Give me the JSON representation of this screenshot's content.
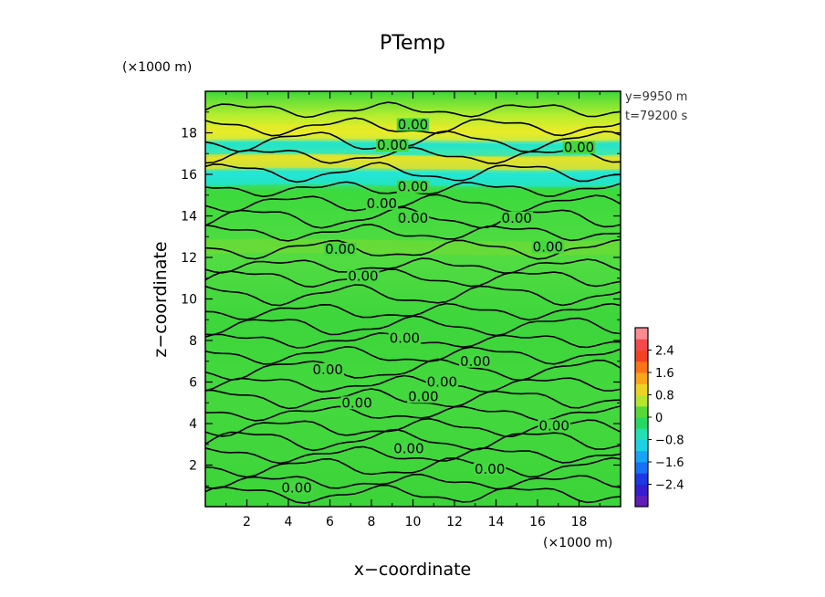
{
  "chart_data": {
    "type": "heatmap",
    "title": "PTemp",
    "xlabel": "x−coordinate",
    "ylabel": "z−coordinate",
    "x_unit": "(×1000 m)",
    "y_unit": "(×1000 m)",
    "xlim": [
      0,
      20
    ],
    "ylim": [
      0,
      20
    ],
    "x_ticks": [
      2,
      4,
      6,
      8,
      10,
      12,
      14,
      16,
      18
    ],
    "y_ticks": [
      2,
      4,
      6,
      8,
      10,
      12,
      14,
      16,
      18
    ],
    "info": [
      "y=9950  m",
      "t=79200 s"
    ],
    "colorbar": {
      "range": [
        -3.2,
        3.2
      ],
      "ticks": [
        {
          "value": 2.4,
          "label": "2.4"
        },
        {
          "value": 1.6,
          "label": "1.6"
        },
        {
          "value": 0.8,
          "label": "0.8"
        },
        {
          "value": 0,
          "label": "0"
        },
        {
          "value": -0.8,
          "label": "−0.8"
        },
        {
          "value": -1.6,
          "label": "−1.6"
        },
        {
          "value": -2.4,
          "label": "−2.4"
        }
      ]
    },
    "contour_level": 0.0,
    "contour_labels": [
      {
        "x": 10.0,
        "z": 18.4,
        "text": "0.00"
      },
      {
        "x": 9.0,
        "z": 17.4,
        "text": "0.00"
      },
      {
        "x": 18.0,
        "z": 17.3,
        "text": "0.00"
      },
      {
        "x": 10.0,
        "z": 15.4,
        "text": "0.00"
      },
      {
        "x": 8.5,
        "z": 14.6,
        "text": "0.00"
      },
      {
        "x": 10.0,
        "z": 13.9,
        "text": "0.00"
      },
      {
        "x": 15.0,
        "z": 13.9,
        "text": "0.00"
      },
      {
        "x": 6.5,
        "z": 12.4,
        "text": "0.00"
      },
      {
        "x": 16.5,
        "z": 12.5,
        "text": "0.00"
      },
      {
        "x": 7.6,
        "z": 11.1,
        "text": "0.00"
      },
      {
        "x": 9.6,
        "z": 8.1,
        "text": "0.00"
      },
      {
        "x": 13.0,
        "z": 7.0,
        "text": "0.00"
      },
      {
        "x": 5.9,
        "z": 6.6,
        "text": "0.00"
      },
      {
        "x": 11.4,
        "z": 6.0,
        "text": "0.00"
      },
      {
        "x": 10.5,
        "z": 5.3,
        "text": "0.00"
      },
      {
        "x": 7.3,
        "z": 5.0,
        "text": "0.00"
      },
      {
        "x": 16.8,
        "z": 3.9,
        "text": "0.00"
      },
      {
        "x": 9.8,
        "z": 2.8,
        "text": "0.00"
      },
      {
        "x": 13.7,
        "z": 1.8,
        "text": "0.00"
      },
      {
        "x": 4.4,
        "z": 0.9,
        "text": "0.00"
      }
    ],
    "field_bands": [
      {
        "z": 18.0,
        "value": 0.8
      },
      {
        "z": 17.2,
        "value": -0.7
      },
      {
        "z": 16.6,
        "value": 0.9
      },
      {
        "z": 15.8,
        "value": -0.8
      },
      {
        "z": 12.5,
        "value": 0.3
      }
    ]
  }
}
